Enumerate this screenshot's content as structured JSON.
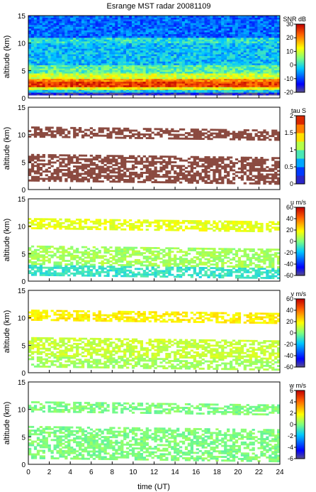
{
  "title": "Esrange MST radar 20081109",
  "xlabel": "time (UT)",
  "chart_data": [
    {
      "type": "heatmap",
      "title": "Esrange MST radar 20081109",
      "ylabel": "altitude (km)",
      "xlim": [
        0,
        24
      ],
      "ylim": [
        0,
        15
      ],
      "x_ticks": [
        "0",
        "2",
        "4",
        "6",
        "8",
        "10",
        "12",
        "14",
        "16",
        "18",
        "20",
        "22",
        "24"
      ],
      "y_ticks": [
        "0",
        "5",
        "10",
        "15"
      ],
      "colorbar": {
        "label": "SNR dB",
        "min": -20,
        "max": 30,
        "ticks": [
          "-20",
          "-10",
          "0",
          "10",
          "20",
          "30"
        ]
      },
      "layers": [
        {
          "altitude_km": [
            0.5,
            1.0
          ],
          "value": -18
        },
        {
          "altitude_km": [
            1.0,
            1.5
          ],
          "value": -2
        },
        {
          "altitude_km": [
            1.5,
            2.0
          ],
          "value": 12
        },
        {
          "altitude_km": [
            2.0,
            3.0
          ],
          "value": 25
        },
        {
          "altitude_km": [
            3.0,
            3.5
          ],
          "value": 20
        },
        {
          "altitude_km": [
            3.5,
            4.5
          ],
          "value": 10
        },
        {
          "altitude_km": [
            4.5,
            6.0
          ],
          "value": 3
        },
        {
          "altitude_km": [
            6.0,
            10.0
          ],
          "value": -3
        },
        {
          "altitude_km": [
            10.0,
            11.0
          ],
          "value": 0
        },
        {
          "altitude_km": [
            11.0,
            15.0
          ],
          "value": -8
        }
      ]
    },
    {
      "type": "heatmap",
      "ylabel": "altitude (km)",
      "xlim": [
        0,
        24
      ],
      "ylim": [
        0,
        15
      ],
      "x_ticks": [
        "0",
        "2",
        "4",
        "6",
        "8",
        "10",
        "12",
        "14",
        "16",
        "18",
        "20",
        "22",
        "24"
      ],
      "y_ticks": [
        "0",
        "5",
        "10",
        "15"
      ],
      "colorbar": {
        "label": "tau S",
        "min": 0,
        "max": 2,
        "ticks": [
          "0",
          "0.5",
          "1",
          "1.5",
          "2"
        ]
      },
      "layers": [
        {
          "altitude_km": [
            1.5,
            6.5
          ],
          "value": 2.0
        },
        {
          "altitude_km": [
            9.5,
            11.5
          ],
          "value": 2.0
        }
      ]
    },
    {
      "type": "heatmap",
      "ylabel": "altitude (km)",
      "xlim": [
        0,
        24
      ],
      "ylim": [
        0,
        15
      ],
      "x_ticks": [
        "0",
        "2",
        "4",
        "6",
        "8",
        "10",
        "12",
        "14",
        "16",
        "18",
        "20",
        "22",
        "24"
      ],
      "y_ticks": [
        "0",
        "5",
        "10",
        "15"
      ],
      "colorbar": {
        "label": "u m/s",
        "min": -60,
        "max": 60,
        "ticks": [
          "-60",
          "-40",
          "-20",
          "0",
          "20",
          "40",
          "60"
        ]
      },
      "layers": [
        {
          "altitude_km": [
            1.0,
            3.0
          ],
          "value": -10
        },
        {
          "altitude_km": [
            3.0,
            6.5
          ],
          "value": 5
        },
        {
          "altitude_km": [
            9.5,
            11.5
          ],
          "value": 15
        }
      ]
    },
    {
      "type": "heatmap",
      "ylabel": "altitude (km)",
      "xlim": [
        0,
        24
      ],
      "ylim": [
        0,
        15
      ],
      "x_ticks": [
        "0",
        "2",
        "4",
        "6",
        "8",
        "10",
        "12",
        "14",
        "16",
        "18",
        "20",
        "22",
        "24"
      ],
      "y_ticks": [
        "0",
        "5",
        "10",
        "15"
      ],
      "colorbar": {
        "label": "v m/s",
        "min": -60,
        "max": 60,
        "ticks": [
          "-60",
          "-40",
          "-20",
          "0",
          "20",
          "40",
          "60"
        ]
      },
      "layers": [
        {
          "altitude_km": [
            1.0,
            3.0
          ],
          "value": 5
        },
        {
          "altitude_km": [
            3.0,
            6.5
          ],
          "value": 10
        },
        {
          "altitude_km": [
            9.5,
            11.5
          ],
          "value": 20
        }
      ]
    },
    {
      "type": "heatmap",
      "ylabel": "altitude (km)",
      "xlim": [
        0,
        24
      ],
      "ylim": [
        0,
        15
      ],
      "x_ticks": [
        "0",
        "2",
        "4",
        "6",
        "8",
        "10",
        "12",
        "14",
        "16",
        "18",
        "20",
        "22",
        "24"
      ],
      "y_ticks": [
        "0",
        "5",
        "10",
        "15"
      ],
      "colorbar": {
        "label": "w m/s",
        "min": -6,
        "max": 6,
        "ticks": [
          "-6",
          "-4",
          "-2",
          "0",
          "2",
          "4",
          "6"
        ]
      },
      "layers": [
        {
          "altitude_km": [
            1.0,
            7.0
          ],
          "value": 0
        },
        {
          "altitude_km": [
            9.5,
            11.5
          ],
          "value": 0
        }
      ]
    }
  ]
}
